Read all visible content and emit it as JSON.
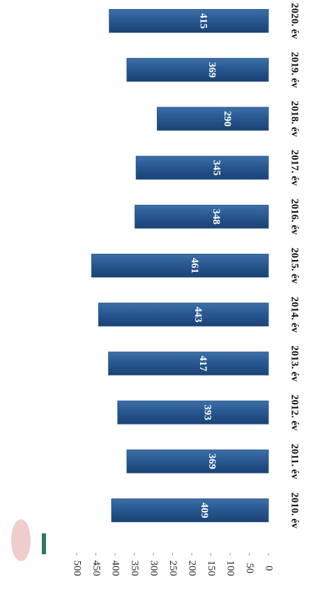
{
  "chart_data": {
    "type": "bar",
    "orientation": "horizontal",
    "categories": [
      "2010. év",
      "2011. év",
      "2012. év",
      "2013. év",
      "2014. év",
      "2015. év",
      "2016. év",
      "2017. év",
      "2018. év",
      "2019. év",
      "2020. év"
    ],
    "values": [
      409,
      369,
      393,
      417,
      443,
      461,
      348,
      345,
      290,
      369,
      415
    ],
    "color": "#27568f",
    "ylim": [
      0,
      500
    ],
    "yticks": [
      0,
      50,
      100,
      150,
      200,
      250,
      300,
      350,
      400,
      450,
      500
    ]
  }
}
